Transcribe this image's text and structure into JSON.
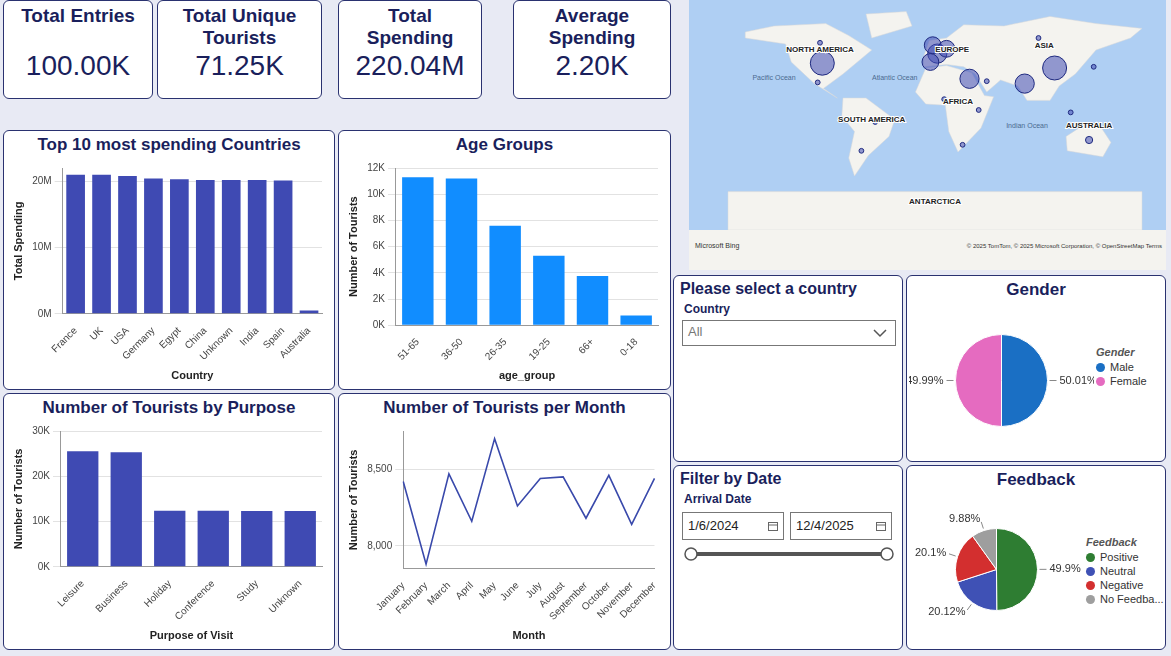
{
  "kpis": [
    {
      "label": "Total Entries",
      "value": "100.00K"
    },
    {
      "label": "Total Unique Tourists",
      "value": "71.25K"
    },
    {
      "label": "Total Spending",
      "value": "220.04M"
    },
    {
      "label": "Average Spending",
      "value": "2.20K"
    }
  ],
  "chart_data": [
    {
      "type": "bar",
      "title": "Top 10 most spending Countries",
      "x_label": "Country",
      "y_label": "Total Spending",
      "categories": [
        "France",
        "UK",
        "USA",
        "Germany",
        "Egypt",
        "China",
        "Unknown",
        "India",
        "Spain",
        "Australia"
      ],
      "values": [
        21000000,
        21000000,
        20800000,
        20400000,
        20300000,
        20200000,
        20200000,
        20200000,
        20100000,
        500000
      ],
      "color": "#3F4AB3",
      "ylim": [
        0,
        22000000
      ],
      "yticks": [
        {
          "value": 0,
          "label": "0M"
        },
        {
          "value": 10000000,
          "label": "10M"
        },
        {
          "value": 20000000,
          "label": "20M"
        }
      ],
      "grid": true
    },
    {
      "type": "bar",
      "title": "Age Groups",
      "x_label": "age_group",
      "y_label": "Number of Tourists",
      "categories": [
        "51-65",
        "36-50",
        "26-35",
        "19-25",
        "66+",
        "0-18"
      ],
      "values": [
        11300,
        11200,
        7600,
        5300,
        3750,
        750
      ],
      "color": "#118DFF",
      "ylim": [
        0,
        12000
      ],
      "yticks": [
        {
          "value": 0,
          "label": "0K"
        },
        {
          "value": 2000,
          "label": "2K"
        },
        {
          "value": 4000,
          "label": "4K"
        },
        {
          "value": 6000,
          "label": "6K"
        },
        {
          "value": 8000,
          "label": "8K"
        },
        {
          "value": 10000,
          "label": "10K"
        },
        {
          "value": 12000,
          "label": "12K"
        }
      ],
      "grid": true
    },
    {
      "type": "bar",
      "title": "Number of Tourists by Purpose",
      "x_label": "Purpose of Visit",
      "y_label": "Number of Tourists",
      "categories": [
        "Leisure",
        "Business",
        "Holiday",
        "Conference",
        "Study",
        "Unknown"
      ],
      "values": [
        25500,
        25300,
        12400,
        12350,
        12300,
        12300
      ],
      "color": "#3F4AB3",
      "ylim": [
        0,
        30000
      ],
      "yticks": [
        {
          "value": 0,
          "label": "0K"
        },
        {
          "value": 10000,
          "label": "10K"
        },
        {
          "value": 20000,
          "label": "20K"
        },
        {
          "value": 30000,
          "label": "30K"
        }
      ],
      "grid": true
    },
    {
      "type": "line",
      "title": "Number of Tourists per Month",
      "x_label": "Month",
      "y_label": "Number of Tourists",
      "categories": [
        "January",
        "February",
        "March",
        "April",
        "May",
        "June",
        "July",
        "August",
        "September",
        "October",
        "November",
        "December"
      ],
      "values": [
        8420,
        7880,
        8470,
        8160,
        8700,
        8260,
        8440,
        8450,
        8180,
        8460,
        8140,
        8440
      ],
      "color": "#3949AB",
      "ylim": [
        7850,
        8750
      ],
      "yticks": [
        {
          "value": 8000,
          "label": "8,000"
        },
        {
          "value": 8500,
          "label": "8,500"
        }
      ],
      "grid": true
    },
    {
      "type": "pie",
      "title": "Gender",
      "legend_title": "Gender",
      "legend": "right",
      "categories": [
        "Male",
        "Female"
      ],
      "values": [
        50.01,
        49.99
      ],
      "value_labels": [
        "50.01%",
        "49.99%"
      ],
      "colors": [
        "#1A6FC4",
        "#E56BC0"
      ],
      "data_labels": true
    },
    {
      "type": "pie",
      "title": "Feedback",
      "legend_title": "Feedback",
      "legend": "right",
      "categories": [
        "Positive",
        "Neutral",
        "Negative",
        "No Feedba..."
      ],
      "values": [
        49.9,
        20.12,
        20.1,
        9.88
      ],
      "value_labels": [
        "49.9%",
        "20.12%",
        "20.1%",
        "9.88%"
      ],
      "colors": [
        "#2E7D32",
        "#3F51B5",
        "#D32F2F",
        "#9E9E9E"
      ],
      "data_labels": true
    }
  ],
  "map": {
    "labels": [
      "NORTH AMERICA",
      "EUROPE",
      "ASIA",
      "AFRICA",
      "SOUTH AMERICA",
      "AUSTRALIA",
      "ANTARCTICA",
      "Pacific Ocean",
      "Atlantic Ocean",
      "Indian Ocean"
    ],
    "logo": "Microsoft Bing",
    "attribution": "© 2025 TomTom, © 2025 Microsoft Corporation, © OpenStreetMap  Terms",
    "color": "#3F4AB3",
    "points": [
      {
        "lon": -98,
        "lat": 39,
        "size": 10
      },
      {
        "lon": 2,
        "lat": 47,
        "size": 8
      },
      {
        "lon": -2,
        "lat": 54,
        "size": 7
      },
      {
        "lon": 10,
        "lat": 51,
        "size": 7
      },
      {
        "lon": -4,
        "lat": 40,
        "size": 7
      },
      {
        "lon": 30,
        "lat": 26,
        "size": 8
      },
      {
        "lon": 78,
        "lat": 22,
        "size": 8
      },
      {
        "lon": 104,
        "lat": 35,
        "size": 10
      },
      {
        "lon": 134,
        "lat": -25,
        "size": 3
      },
      {
        "lon": -52,
        "lat": -10,
        "size": 2
      },
      {
        "lon": -102,
        "lat": 23,
        "size": 2
      },
      {
        "lon": -100,
        "lat": 56,
        "size": 2
      },
      {
        "lon": 8,
        "lat": 9,
        "size": 2
      },
      {
        "lon": 24,
        "lat": -29,
        "size": 2
      },
      {
        "lon": 138,
        "lat": 36,
        "size": 2
      },
      {
        "lon": 90,
        "lat": 60,
        "size": 2
      },
      {
        "lon": -64,
        "lat": -34,
        "size": 2
      },
      {
        "lon": 118,
        "lat": -2,
        "size": 2
      },
      {
        "lon": 38,
        "lat": 0,
        "size": 2
      },
      {
        "lon": 45,
        "lat": 24,
        "size": 2
      }
    ]
  },
  "slicers": {
    "country": {
      "title": "Please select a country",
      "label": "Country",
      "value": "All"
    },
    "date": {
      "title": "Filter by Date",
      "label": "Arrival Date",
      "start": "1/6/2024",
      "end": "12/4/2025"
    }
  }
}
